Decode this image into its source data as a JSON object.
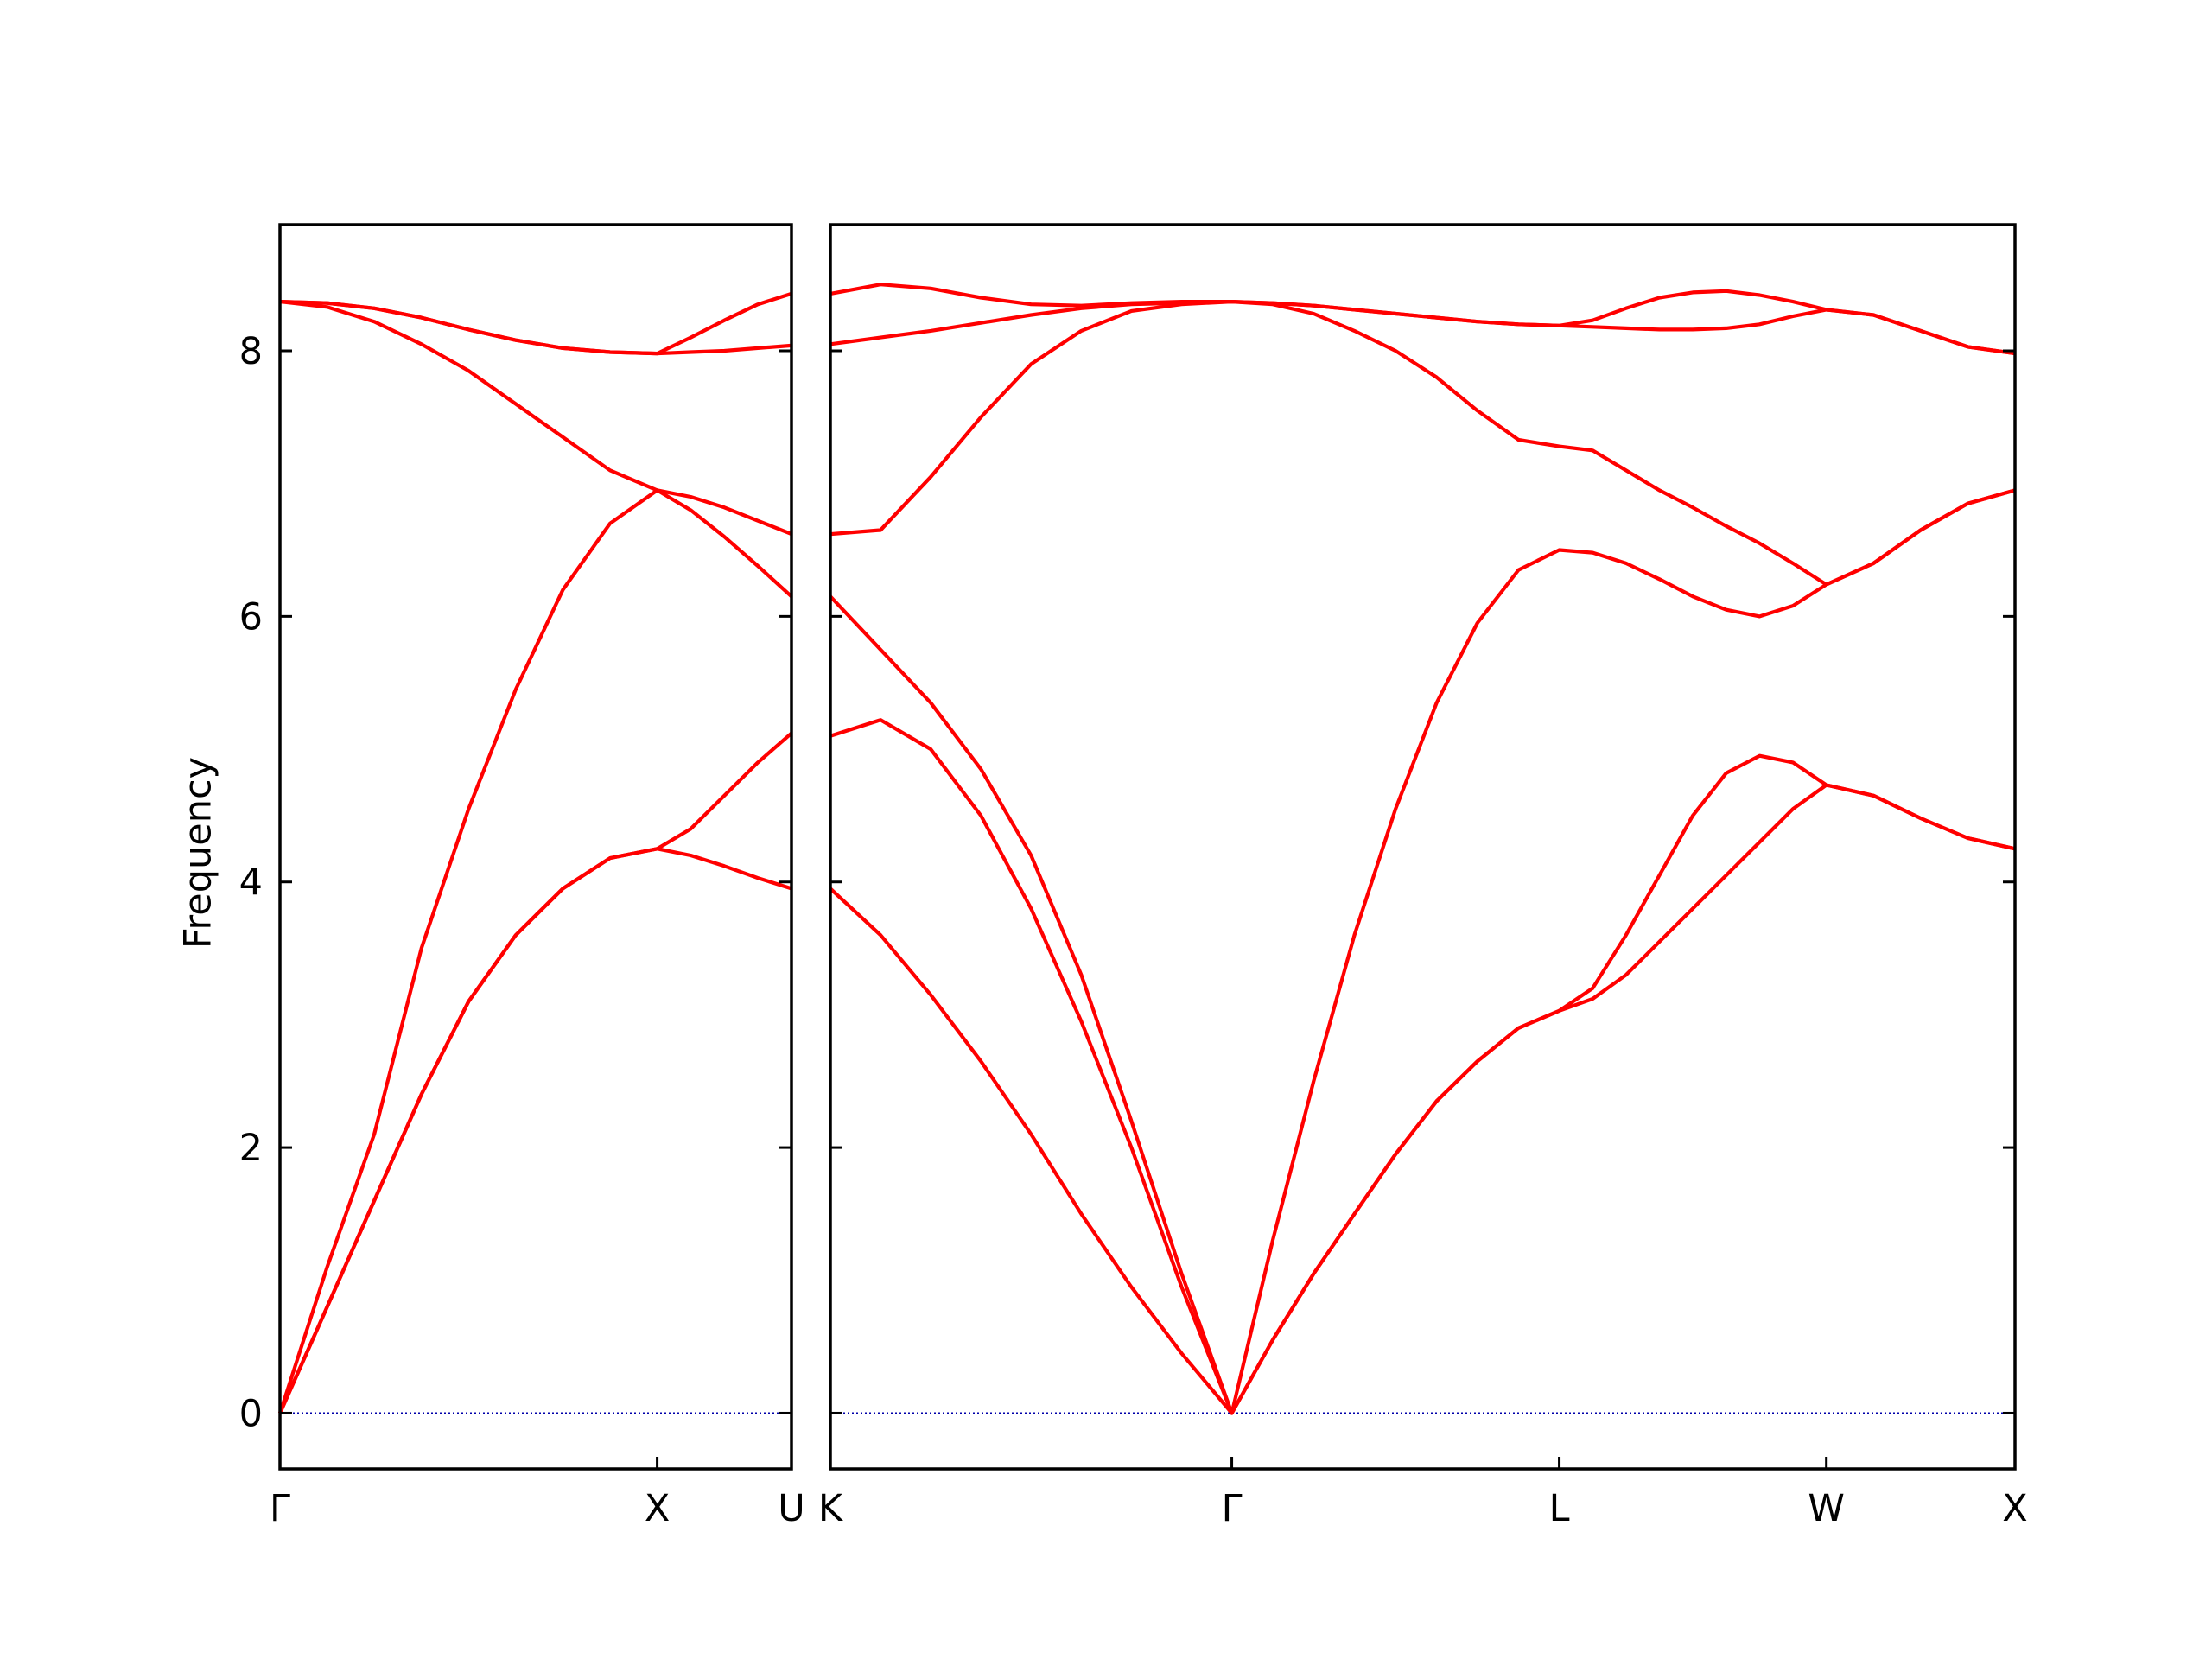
{
  "chart_data": [
    {
      "type": "line",
      "ylabel": "Frequency",
      "xlim": [
        0,
        1.356
      ],
      "ylim": [
        -0.42,
        8.95
      ],
      "xticks": [
        {
          "value": 0,
          "label": "Γ"
        },
        {
          "value": 1,
          "label": "X"
        },
        {
          "value": 1.356,
          "label": "U"
        }
      ],
      "yticks": [
        0,
        2,
        4,
        6,
        8
      ],
      "x": [
        0,
        0.125,
        0.25,
        0.375,
        0.5,
        0.625,
        0.75,
        0.875,
        1,
        1.089,
        1.178,
        1.267,
        1.356
      ],
      "series": [
        {
          "color": "#ff0000",
          "values": [
            0,
            0.8,
            1.6,
            2.4,
            3.1,
            3.6,
            3.95,
            4.18,
            4.25,
            4.2,
            4.12,
            4.03,
            3.95
          ]
        },
        {
          "color": "#ff0000",
          "values": [
            0,
            0.8,
            1.6,
            2.4,
            3.1,
            3.6,
            3.95,
            4.18,
            4.25,
            4.4,
            4.65,
            4.9,
            5.12
          ]
        },
        {
          "color": "#ff0000",
          "values": [
            0,
            1.1,
            2.1,
            3.5,
            4.55,
            5.45,
            6.2,
            6.7,
            6.95,
            6.8,
            6.6,
            6.38,
            6.15
          ]
        },
        {
          "color": "#ff0000",
          "values": [
            8.37,
            8.33,
            8.22,
            8.05,
            7.85,
            7.6,
            7.35,
            7.1,
            6.95,
            6.9,
            6.82,
            6.72,
            6.62
          ]
        },
        {
          "color": "#ff0000",
          "values": [
            8.37,
            8.36,
            8.32,
            8.25,
            8.16,
            8.08,
            8.02,
            7.99,
            7.98,
            7.99,
            8.0,
            8.02,
            8.04
          ]
        },
        {
          "color": "#ff0000",
          "values": [
            8.37,
            8.36,
            8.32,
            8.25,
            8.16,
            8.08,
            8.02,
            7.99,
            7.98,
            8.1,
            8.23,
            8.35,
            8.43
          ]
        }
      ]
    },
    {
      "type": "line",
      "xlim": [
        0,
        3.14
      ],
      "ylim": [
        -0.42,
        8.95
      ],
      "xticks": [
        {
          "value": 0,
          "label": "K"
        },
        {
          "value": 1.064,
          "label": "Γ"
        },
        {
          "value": 1.932,
          "label": "L"
        },
        {
          "value": 2.64,
          "label": "W"
        },
        {
          "value": 3.14,
          "label": "X"
        }
      ],
      "yticks": [
        0,
        2,
        4,
        6,
        8
      ],
      "x": [
        0,
        0.133,
        0.266,
        0.399,
        0.532,
        0.665,
        0.798,
        0.931,
        1.064,
        1.1725,
        1.281,
        1.389,
        1.498,
        1.607,
        1.715,
        1.824,
        1.932,
        2.0205,
        2.109,
        2.1975,
        2.286,
        2.3745,
        2.463,
        2.5515,
        2.64,
        2.765,
        2.89,
        3.015,
        3.14
      ],
      "series": [
        {
          "color": "#ff0000",
          "values": [
            3.95,
            3.6,
            3.15,
            2.65,
            2.1,
            1.5,
            0.95,
            0.45,
            0,
            0.55,
            1.05,
            1.5,
            1.95,
            2.35,
            2.65,
            2.9,
            3.03,
            3.12,
            3.3,
            3.55,
            3.8,
            4.05,
            4.3,
            4.55,
            4.73,
            4.65,
            4.48,
            4.33,
            4.25
          ]
        },
        {
          "color": "#ff0000",
          "values": [
            5.1,
            5.22,
            5.0,
            4.5,
            3.8,
            2.95,
            2.0,
            0.95,
            0,
            0.55,
            1.05,
            1.5,
            1.95,
            2.35,
            2.65,
            2.9,
            3.03,
            3.2,
            3.6,
            4.05,
            4.5,
            4.82,
            4.95,
            4.9,
            4.73,
            4.65,
            4.48,
            4.33,
            4.25
          ]
        },
        {
          "color": "#ff0000",
          "values": [
            6.15,
            5.75,
            5.35,
            4.85,
            4.2,
            3.3,
            2.2,
            1.05,
            0,
            1.3,
            2.5,
            3.6,
            4.55,
            5.35,
            5.95,
            6.35,
            6.5,
            6.48,
            6.4,
            6.28,
            6.15,
            6.05,
            6.0,
            6.08,
            6.24,
            6.4,
            6.65,
            6.85,
            6.95
          ]
        },
        {
          "color": "#ff0000",
          "values": [
            6.62,
            6.65,
            7.05,
            7.5,
            7.9,
            8.15,
            8.3,
            8.35,
            8.37,
            8.35,
            8.28,
            8.15,
            8.0,
            7.8,
            7.55,
            7.33,
            7.28,
            7.25,
            7.1,
            6.95,
            6.82,
            6.68,
            6.55,
            6.4,
            6.24,
            6.4,
            6.65,
            6.85,
            6.95
          ]
        },
        {
          "color": "#ff0000",
          "values": [
            8.05,
            8.1,
            8.15,
            8.21,
            8.27,
            8.32,
            8.35,
            8.36,
            8.37,
            8.36,
            8.34,
            8.31,
            8.28,
            8.25,
            8.22,
            8.2,
            8.19,
            8.18,
            8.17,
            8.16,
            8.16,
            8.17,
            8.2,
            8.26,
            8.31,
            8.27,
            8.15,
            8.03,
            7.98
          ]
        },
        {
          "color": "#ff0000",
          "values": [
            8.43,
            8.5,
            8.47,
            8.4,
            8.35,
            8.34,
            8.36,
            8.37,
            8.37,
            8.36,
            8.34,
            8.31,
            8.28,
            8.25,
            8.22,
            8.2,
            8.19,
            8.23,
            8.32,
            8.4,
            8.44,
            8.45,
            8.42,
            8.37,
            8.31,
            8.27,
            8.15,
            8.03,
            7.98
          ]
        }
      ]
    }
  ]
}
